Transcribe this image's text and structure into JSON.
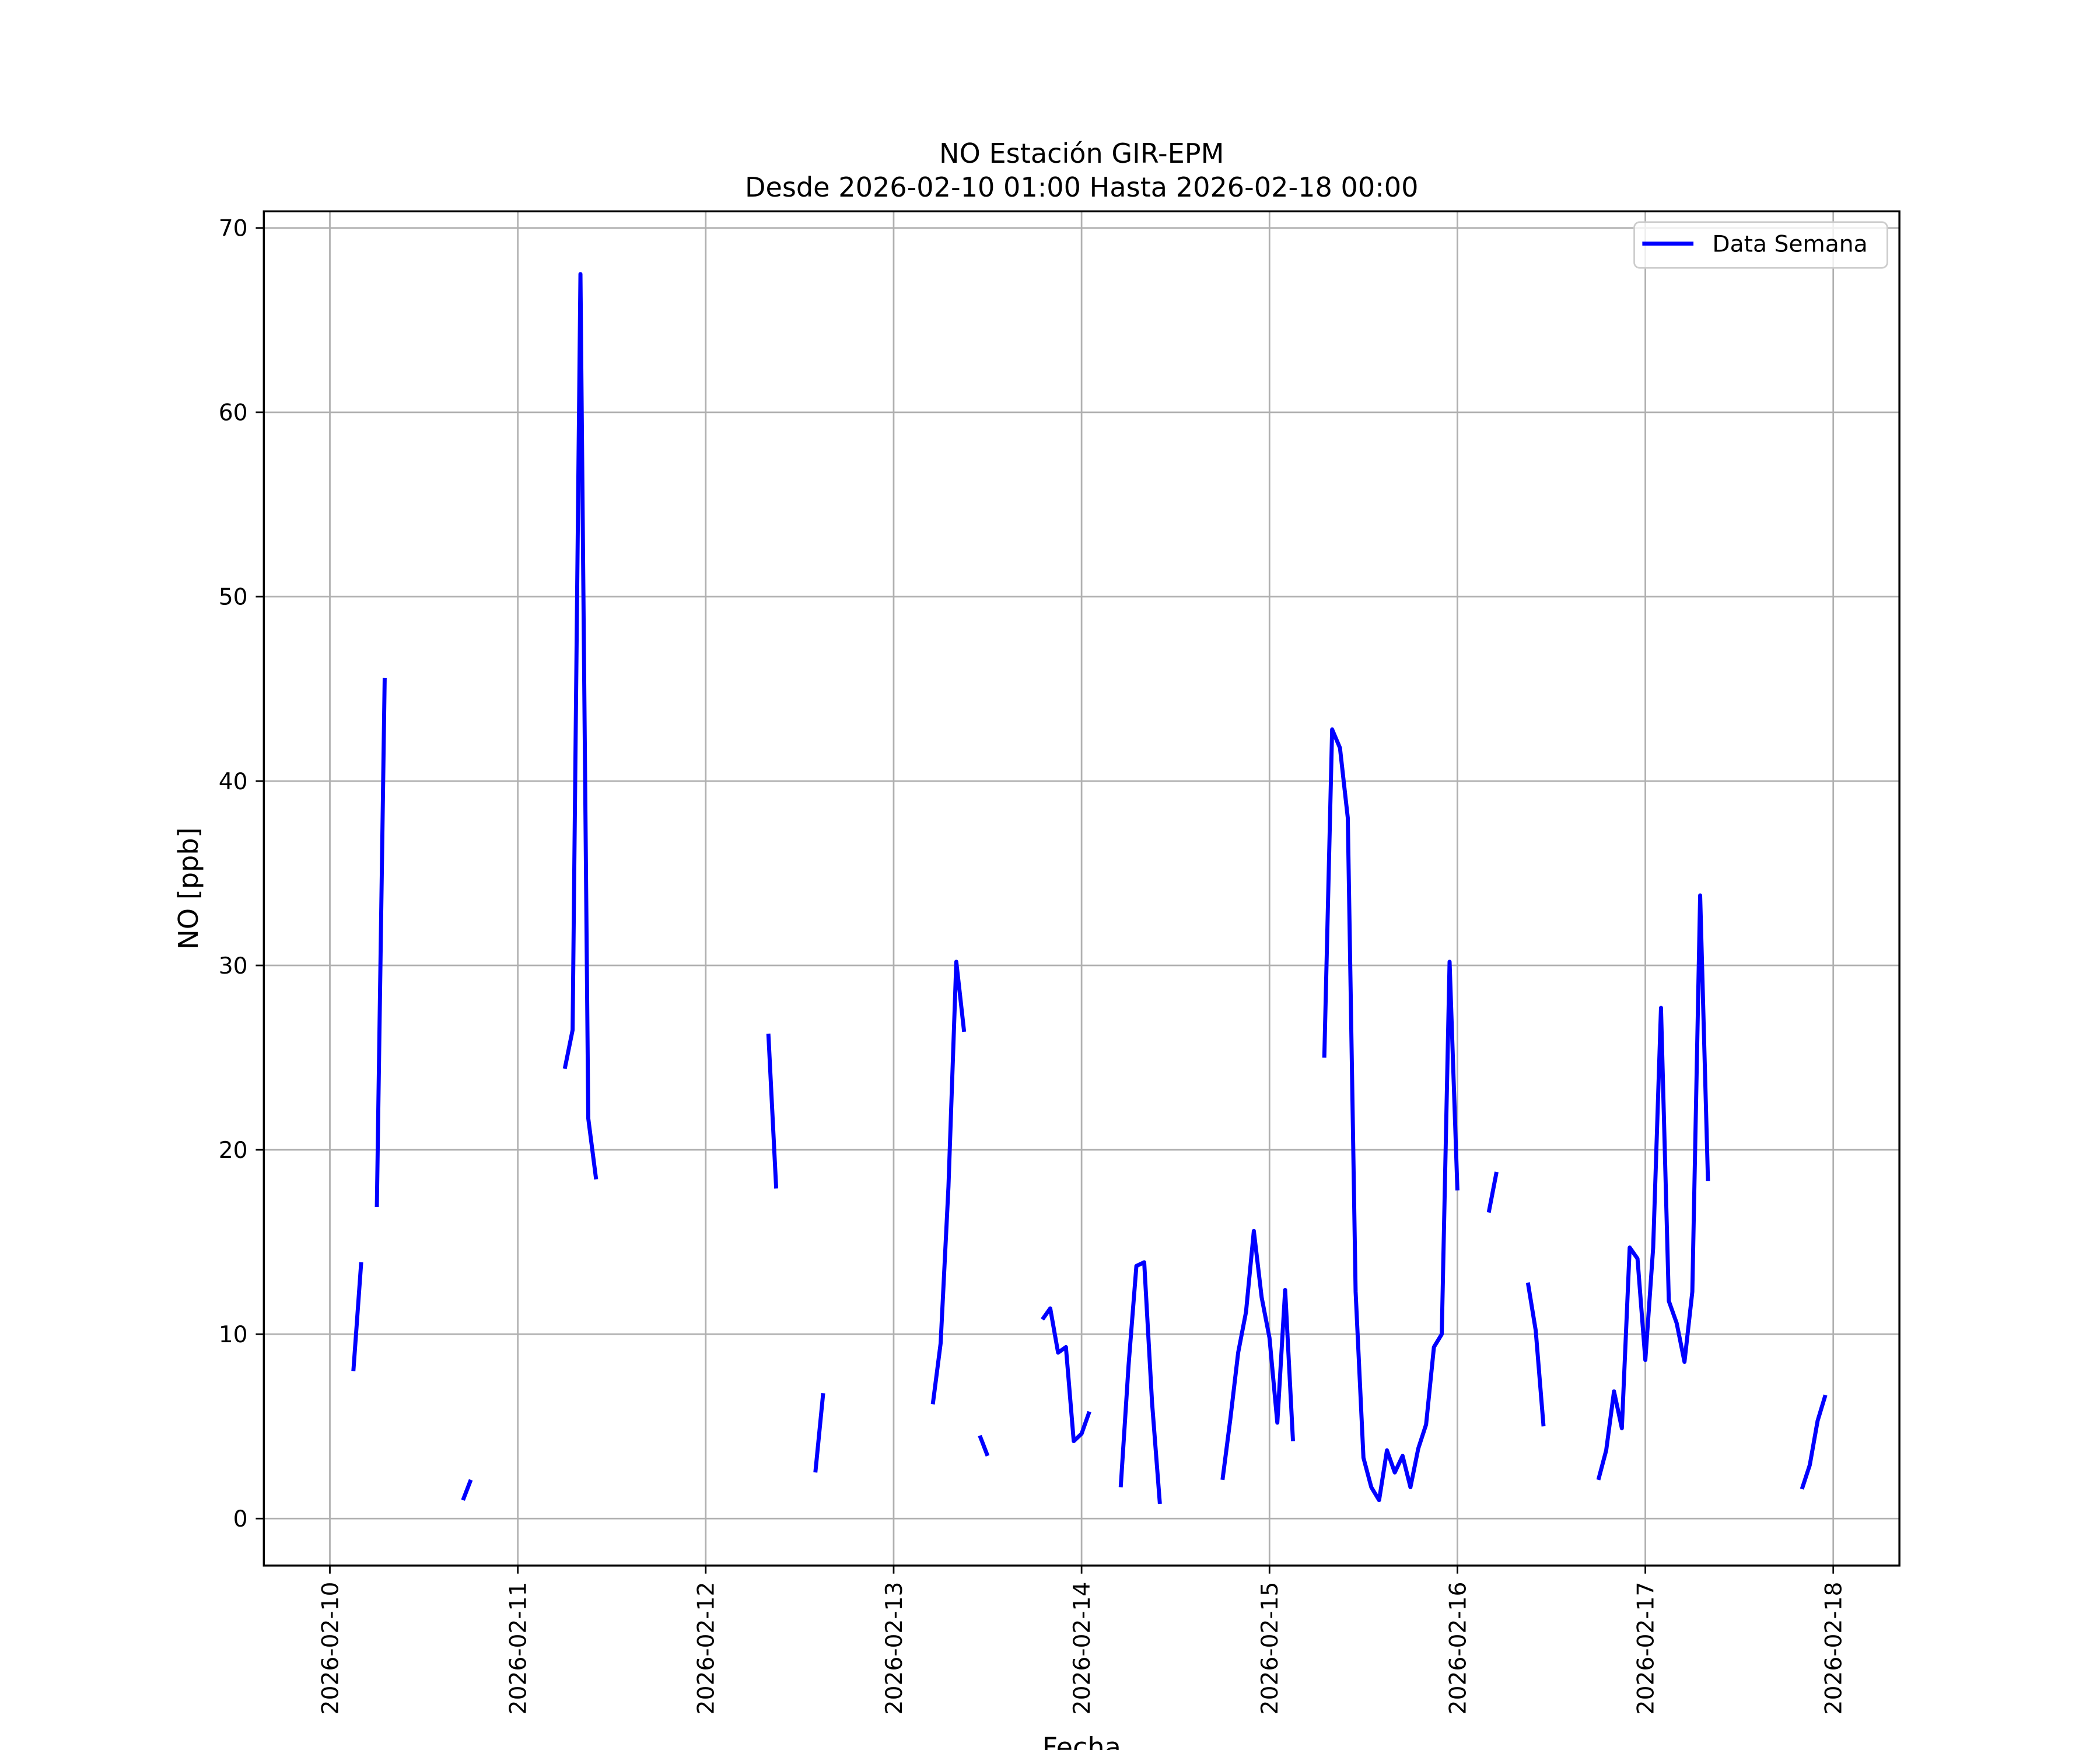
{
  "chart_data": {
    "type": "line",
    "title": "NO Estación GIR-EPM",
    "subtitle": "Desde 2026-02-10 01:00 Hasta 2026-02-18 00:00",
    "xlabel": "Fecha",
    "ylabel": "NO [ppb]",
    "x": [
      "2026-02-10T03:00",
      "2026-02-10T04:00",
      null,
      "2026-02-10T06:00",
      "2026-02-10T07:00",
      null,
      "2026-02-10T17:00",
      "2026-02-10T18:00",
      null,
      "2026-02-11T06:00",
      "2026-02-11T07:00",
      "2026-02-11T08:00",
      "2026-02-11T09:00",
      "2026-02-11T10:00",
      null,
      "2026-02-12T08:00",
      "2026-02-12T09:00",
      null,
      "2026-02-12T14:00",
      "2026-02-12T15:00",
      null,
      "2026-02-13T05:00",
      "2026-02-13T06:00",
      "2026-02-13T07:00",
      "2026-02-13T08:00",
      "2026-02-13T09:00",
      null,
      "2026-02-13T11:00",
      "2026-02-13T12:00",
      null,
      "2026-02-13T19:00",
      "2026-02-13T20:00",
      "2026-02-13T21:00",
      "2026-02-13T22:00",
      "2026-02-13T23:00",
      "2026-02-14T00:00",
      "2026-02-14T01:00",
      null,
      "2026-02-14T05:00",
      "2026-02-14T06:00",
      "2026-02-14T07:00",
      "2026-02-14T08:00",
      "2026-02-14T09:00",
      "2026-02-14T10:00",
      null,
      "2026-02-14T18:00",
      "2026-02-14T19:00",
      "2026-02-14T20:00",
      "2026-02-14T21:00",
      "2026-02-14T22:00",
      "2026-02-14T23:00",
      "2026-02-15T00:00",
      "2026-02-15T01:00",
      "2026-02-15T02:00",
      "2026-02-15T03:00",
      null,
      "2026-02-15T07:00",
      "2026-02-15T08:00",
      "2026-02-15T09:00",
      "2026-02-15T10:00",
      "2026-02-15T11:00",
      "2026-02-15T12:00",
      "2026-02-15T13:00",
      "2026-02-15T14:00",
      "2026-02-15T15:00",
      "2026-02-15T16:00",
      "2026-02-15T17:00",
      "2026-02-15T18:00",
      "2026-02-15T19:00",
      "2026-02-15T20:00",
      "2026-02-15T21:00",
      "2026-02-15T22:00",
      "2026-02-15T23:00",
      "2026-02-16T00:00",
      null,
      "2026-02-16T04:00",
      "2026-02-16T05:00",
      null,
      "2026-02-16T09:00",
      "2026-02-16T10:00",
      "2026-02-16T11:00",
      null,
      "2026-02-16T18:00",
      "2026-02-16T19:00",
      "2026-02-16T20:00",
      "2026-02-16T21:00",
      "2026-02-16T22:00",
      "2026-02-16T23:00",
      "2026-02-17T00:00",
      "2026-02-17T01:00",
      "2026-02-17T02:00",
      "2026-02-17T03:00",
      "2026-02-17T04:00",
      "2026-02-17T05:00",
      "2026-02-17T06:00",
      "2026-02-17T07:00",
      "2026-02-17T08:00",
      null,
      "2026-02-17T20:00",
      "2026-02-17T21:00",
      "2026-02-17T22:00",
      "2026-02-17T23:00"
    ],
    "series": [
      {
        "name": "Data Semana",
        "color": "#0000ff",
        "values": [
          8.0,
          13.9,
          null,
          16.9,
          45.6,
          null,
          1.0,
          2.1,
          null,
          24.4,
          26.5,
          67.5,
          21.7,
          18.4,
          null,
          26.3,
          17.9,
          null,
          2.5,
          6.8,
          null,
          6.2,
          9.5,
          18.0,
          30.2,
          26.4,
          null,
          4.5,
          3.4,
          null,
          10.8,
          11.4,
          9.0,
          9.3,
          4.2,
          4.6,
          5.8,
          null,
          1.7,
          8.3,
          13.7,
          13.9,
          6.3,
          0.8,
          null,
          2.1,
          5.4,
          9.0,
          11.2,
          15.6,
          12.0,
          9.8,
          5.2,
          12.4,
          4.2,
          null,
          25.0,
          42.8,
          41.8,
          38.0,
          12.3,
          3.3,
          1.7,
          1.0,
          3.7,
          2.5,
          3.4,
          1.7,
          3.8,
          5.1,
          9.3,
          10.0,
          30.2,
          17.8,
          null,
          16.6,
          18.8,
          null,
          12.8,
          10.2,
          5.0,
          null,
          2.1,
          3.7,
          6.9,
          4.9,
          14.7,
          14.1,
          8.6,
          14.7,
          27.7,
          11.8,
          10.6,
          8.5,
          12.3,
          33.8,
          18.3,
          null,
          1.6,
          2.9,
          5.3,
          6.7
        ]
      }
    ],
    "xlim": [
      "2026-02-09T15:34",
      "2026-02-18T08:27"
    ],
    "xticks": [
      "2026-02-10",
      "2026-02-11",
      "2026-02-12",
      "2026-02-13",
      "2026-02-14",
      "2026-02-15",
      "2026-02-16",
      "2026-02-17",
      "2026-02-18"
    ],
    "ylim": [
      -2.55,
      70.9
    ],
    "yticks": [
      0,
      10,
      20,
      30,
      40,
      50,
      60,
      70
    ],
    "grid": true,
    "legend": "upper right"
  }
}
